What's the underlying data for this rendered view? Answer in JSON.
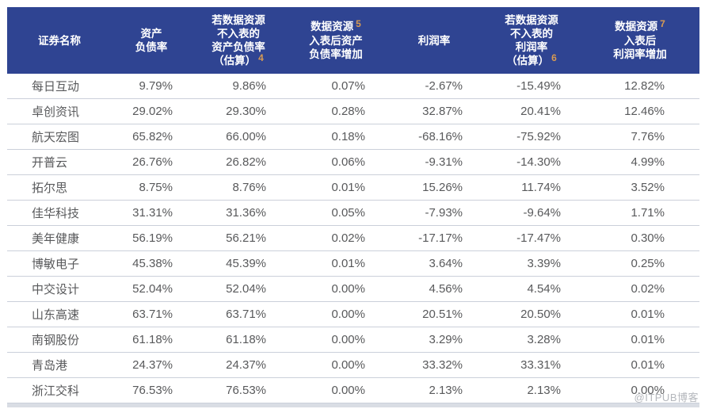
{
  "watermark": "@ITPUB博客",
  "colors": {
    "header_bg": "#2F4492",
    "header_text": "#FFFFFF",
    "footnote": "#D89B52",
    "body_text": "#58595B",
    "separator": "#CBD0DA",
    "bottom_bar": "#D9DDE4"
  },
  "chart_data": {
    "type": "table",
    "header": {
      "columns": [
        {
          "label": "证券名称",
          "label_lines": [
            "证券名称"
          ],
          "sup": "",
          "sup_after_line": -1
        },
        {
          "label": "资产负债率",
          "label_lines": [
            "资产",
            "负债率"
          ],
          "sup": "",
          "sup_after_line": -1
        },
        {
          "label": "若数据资源不入表的资产负债率（估算）",
          "label_lines": [
            "若数据资源",
            "不入表的",
            "资产负债率",
            "（估算）"
          ],
          "sup": "4",
          "sup_after_line": 3
        },
        {
          "label": "数据资源入表后资产负债率增加",
          "label_lines": [
            "数据资源",
            "入表后资产",
            "负债率增加"
          ],
          "sup": "5",
          "sup_after_line": 0
        },
        {
          "label": "利润率",
          "label_lines": [
            "利润率"
          ],
          "sup": "",
          "sup_after_line": -1
        },
        {
          "label": "若数据资源不入表的利润率（估算）",
          "label_lines": [
            "若数据资源",
            "不入表的",
            "利润率",
            "（估算）"
          ],
          "sup": "6",
          "sup_after_line": 3
        },
        {
          "label": "数据资源入表后利润率增加",
          "label_lines": [
            "数据资源",
            "入表后",
            "利润率增加"
          ],
          "sup": "7",
          "sup_after_line": 0
        }
      ]
    },
    "rows": [
      {
        "name": "每日互动",
        "values": [
          "9.79%",
          "9.86%",
          "0.07%",
          "-2.67%",
          "-15.49%",
          "12.82%"
        ]
      },
      {
        "name": "卓创资讯",
        "values": [
          "29.02%",
          "29.30%",
          "0.28%",
          "32.87%",
          "20.41%",
          "12.46%"
        ]
      },
      {
        "name": "航天宏图",
        "values": [
          "65.82%",
          "66.00%",
          "0.18%",
          "-68.16%",
          "-75.92%",
          "7.76%"
        ]
      },
      {
        "name": "开普云",
        "values": [
          "26.76%",
          "26.82%",
          "0.06%",
          "-9.31%",
          "-14.30%",
          "4.99%"
        ]
      },
      {
        "name": "拓尔思",
        "values": [
          "8.75%",
          "8.76%",
          "0.01%",
          "15.26%",
          "11.74%",
          "3.52%"
        ]
      },
      {
        "name": "佳华科技",
        "values": [
          "31.31%",
          "31.36%",
          "0.05%",
          "-7.93%",
          "-9.64%",
          "1.71%"
        ]
      },
      {
        "name": "美年健康",
        "values": [
          "56.19%",
          "56.21%",
          "0.02%",
          "-17.17%",
          "-17.47%",
          "0.30%"
        ]
      },
      {
        "name": "博敏电子",
        "values": [
          "45.38%",
          "45.39%",
          "0.01%",
          "3.64%",
          "3.39%",
          "0.25%"
        ]
      },
      {
        "name": "中交设计",
        "values": [
          "52.04%",
          "52.04%",
          "0.00%",
          "4.56%",
          "4.54%",
          "0.02%"
        ]
      },
      {
        "name": "山东高速",
        "values": [
          "63.71%",
          "63.71%",
          "0.00%",
          "20.51%",
          "20.50%",
          "0.01%"
        ]
      },
      {
        "name": "南钢股份",
        "values": [
          "61.18%",
          "61.18%",
          "0.00%",
          "3.29%",
          "3.28%",
          "0.01%"
        ]
      },
      {
        "name": "青岛港",
        "values": [
          "24.37%",
          "24.37%",
          "0.00%",
          "33.32%",
          "33.31%",
          "0.01%"
        ]
      },
      {
        "name": "浙江交科",
        "values": [
          "76.53%",
          "76.53%",
          "0.00%",
          "2.13%",
          "2.13%",
          "0.00%"
        ]
      }
    ]
  }
}
